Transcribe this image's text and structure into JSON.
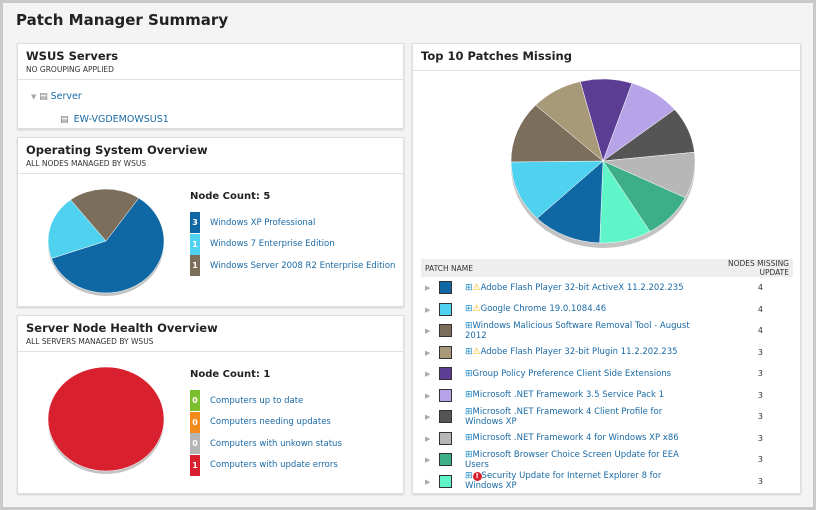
{
  "page": {
    "title": "Patch Manager Summary"
  },
  "wsus": {
    "title": "WSUS Servers",
    "subtitle": "NO GROUPING APPLIED",
    "group": "Server",
    "server": "EW-VGDEMOWSUS1"
  },
  "os": {
    "title": "Operating System Overview",
    "subtitle": "ALL NODES MANAGED BY WSUS",
    "node_count": "Node Count: 5",
    "items": [
      {
        "count": "3",
        "label": "Windows XP Professional",
        "color": "#0f68a3"
      },
      {
        "count": "1",
        "label": "Windows 7 Enterprise Edition",
        "color": "#4fd2ef"
      },
      {
        "count": "1",
        "label": "Windows Server 2008 R2 Enterprise Edition",
        "color": "#7b6e5b"
      }
    ]
  },
  "health": {
    "title": "Server Node Health Overview",
    "subtitle": "ALL SERVERS MANAGED BY WSUS",
    "node_count": "Node Count: 1",
    "items": [
      {
        "count": "0",
        "label": "Computers up to date",
        "color": "#7cbf2e"
      },
      {
        "count": "0",
        "label": "Computers needing updates",
        "color": "#f28a1c"
      },
      {
        "count": "0",
        "label": "Computers with unkown status",
        "color": "#b5b5b5"
      },
      {
        "count": "1",
        "label": "Computers with update errors",
        "color": "#d9202e"
      }
    ]
  },
  "patches": {
    "title": "Top 10 Patches Missing",
    "col_name": "PATCH NAME",
    "col_nodes": "NODES MISSING UPDATE",
    "rows": [
      {
        "name": "Adobe Flash Player 32-bit ActiveX 11.2.202.235",
        "nodes": "4",
        "color": "#0f68a3",
        "status": "warning"
      },
      {
        "name": "Google Chrome 19.0.1084.46",
        "nodes": "4",
        "color": "#4fd2ef",
        "status": "warning"
      },
      {
        "name": "Windows Malicious Software Removal Tool - August 2012",
        "nodes": "4",
        "color": "#7b6e5b",
        "status": ""
      },
      {
        "name": "Adobe Flash Player 32-bit Plugin 11.2.202.235",
        "nodes": "3",
        "color": "#a89a78",
        "status": "warning"
      },
      {
        "name": "Group Policy Preference Client Side Extensions",
        "nodes": "3",
        "color": "#5b3d94",
        "status": ""
      },
      {
        "name": "Microsoft .NET Framework 3.5 Service Pack 1",
        "nodes": "3",
        "color": "#b7a4e8",
        "status": ""
      },
      {
        "name": "Microsoft .NET Framework 4 Client Profile for Windows XP",
        "nodes": "3",
        "color": "#555555",
        "status": ""
      },
      {
        "name": "Microsoft .NET Framework 4 for Windows XP x86",
        "nodes": "3",
        "color": "#b7b7b7",
        "status": ""
      },
      {
        "name": "Microsoft Browser Choice Screen Update for EEA Users",
        "nodes": "3",
        "color": "#3cae88",
        "status": ""
      },
      {
        "name": "Security Update for Internet Explorer 8 for Windows XP",
        "nodes": "3",
        "color": "#5ff5c9",
        "status": "error"
      }
    ]
  }
}
